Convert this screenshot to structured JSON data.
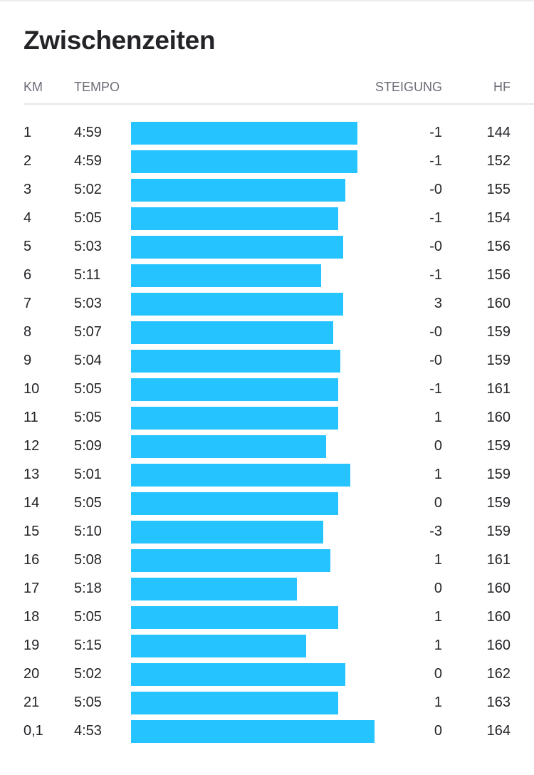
{
  "title": "Zwischenzeiten",
  "headers": {
    "km": "KM",
    "tempo": "TEMPO",
    "steigung": "STEIGUNG",
    "hf": "HF"
  },
  "bar_color": "#25c3ff",
  "splits": [
    {
      "km": "1",
      "tempo": "4:59",
      "steigung": "-1",
      "hf": "144",
      "speed_fraction": 0.93
    },
    {
      "km": "2",
      "tempo": "4:59",
      "steigung": "-1",
      "hf": "152",
      "speed_fraction": 0.93
    },
    {
      "km": "3",
      "tempo": "5:02",
      "steigung": "-0",
      "hf": "155",
      "speed_fraction": 0.88
    },
    {
      "km": "4",
      "tempo": "5:05",
      "steigung": "-1",
      "hf": "154",
      "speed_fraction": 0.85
    },
    {
      "km": "5",
      "tempo": "5:03",
      "steigung": "-0",
      "hf": "156",
      "speed_fraction": 0.87
    },
    {
      "km": "6",
      "tempo": "5:11",
      "steigung": "-1",
      "hf": "156",
      "speed_fraction": 0.78
    },
    {
      "km": "7",
      "tempo": "5:03",
      "steigung": "3",
      "hf": "160",
      "speed_fraction": 0.87
    },
    {
      "km": "8",
      "tempo": "5:07",
      "steigung": "-0",
      "hf": "159",
      "speed_fraction": 0.83
    },
    {
      "km": "9",
      "tempo": "5:04",
      "steigung": "-0",
      "hf": "159",
      "speed_fraction": 0.86
    },
    {
      "km": "10",
      "tempo": "5:05",
      "steigung": "-1",
      "hf": "161",
      "speed_fraction": 0.85
    },
    {
      "km": "11",
      "tempo": "5:05",
      "steigung": "1",
      "hf": "160",
      "speed_fraction": 0.85
    },
    {
      "km": "12",
      "tempo": "5:09",
      "steigung": "0",
      "hf": "159",
      "speed_fraction": 0.8
    },
    {
      "km": "13",
      "tempo": "5:01",
      "steigung": "1",
      "hf": "159",
      "speed_fraction": 0.9
    },
    {
      "km": "14",
      "tempo": "5:05",
      "steigung": "0",
      "hf": "159",
      "speed_fraction": 0.85
    },
    {
      "km": "15",
      "tempo": "5:10",
      "steigung": "-3",
      "hf": "159",
      "speed_fraction": 0.79
    },
    {
      "km": "16",
      "tempo": "5:08",
      "steigung": "1",
      "hf": "161",
      "speed_fraction": 0.82
    },
    {
      "km": "17",
      "tempo": "5:18",
      "steigung": "0",
      "hf": "160",
      "speed_fraction": 0.68
    },
    {
      "km": "18",
      "tempo": "5:05",
      "steigung": "1",
      "hf": "160",
      "speed_fraction": 0.85
    },
    {
      "km": "19",
      "tempo": "5:15",
      "steigung": "1",
      "hf": "160",
      "speed_fraction": 0.72
    },
    {
      "km": "20",
      "tempo": "5:02",
      "steigung": "0",
      "hf": "162",
      "speed_fraction": 0.88
    },
    {
      "km": "21",
      "tempo": "5:05",
      "steigung": "1",
      "hf": "163",
      "speed_fraction": 0.85
    },
    {
      "km": "0,1",
      "tempo": "4:53",
      "steigung": "0",
      "hf": "164",
      "speed_fraction": 1.0
    }
  ]
}
